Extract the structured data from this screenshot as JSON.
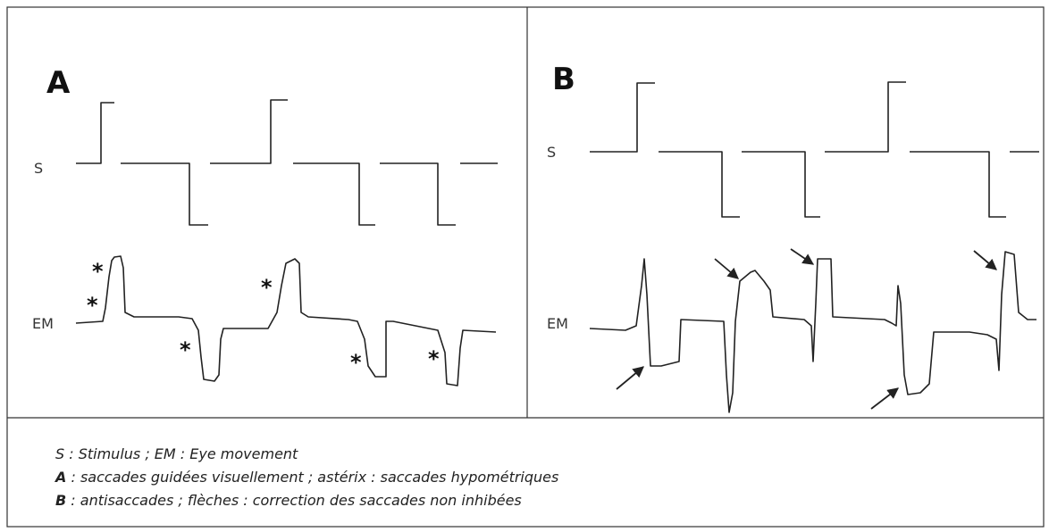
{
  "panels": [
    {
      "label": "A",
      "stimulus_label": "S",
      "movement_label": "EM",
      "markers": [
        "*",
        "*",
        "*",
        "*",
        "*",
        "*"
      ]
    },
    {
      "label": "B",
      "stimulus_label": "S",
      "movement_label": "EM"
    }
  ],
  "caption": [
    {
      "text": "S : Stimulus ; EM : Eye movement"
    },
    {
      "key": "A",
      "text": ": saccades guidées visuellement ; astérix : saccades hypométriques"
    },
    {
      "key": "B",
      "text": ": antisaccades ; flèches : correction des saccades non inhibées"
    }
  ]
}
